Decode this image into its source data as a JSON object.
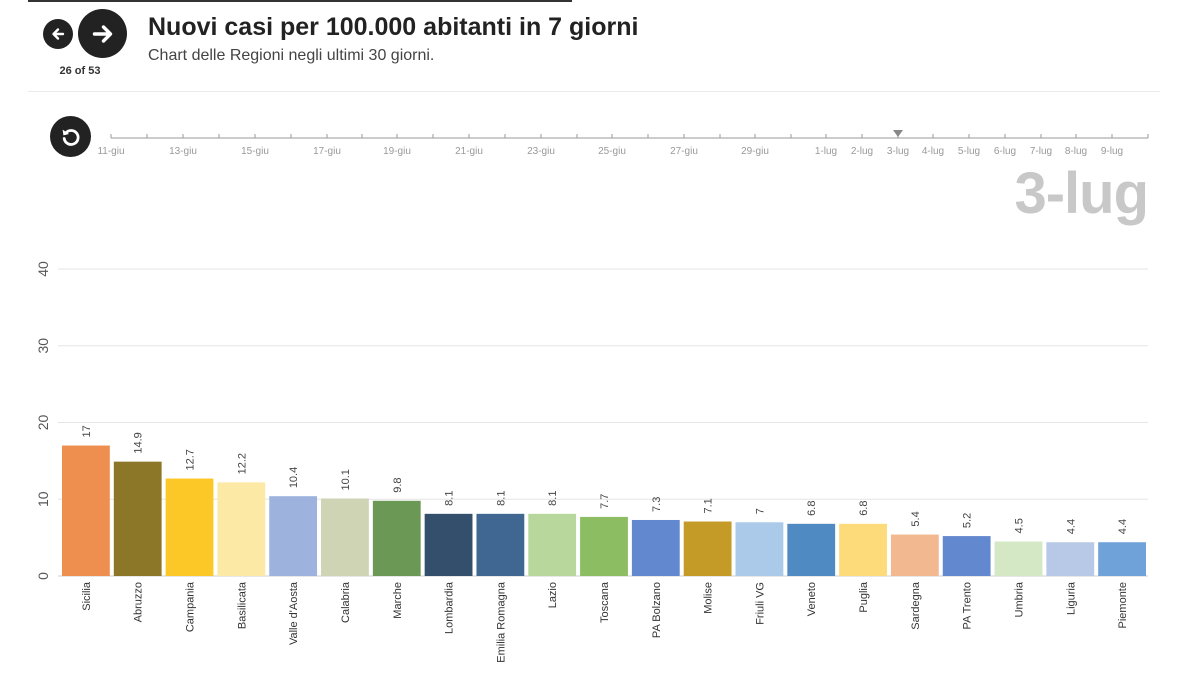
{
  "header": {
    "title": "Nuovi casi per 100.000 abitanti in 7 giorni",
    "subtitle": "Chart delle Regioni negli ultimi 30 giorni.",
    "counter": "26 of 53"
  },
  "timeline": {
    "current": "3-lug",
    "current_index": 22,
    "labels": [
      "11-giu",
      "",
      "13-giu",
      "",
      "15-giu",
      "",
      "17-giu",
      "",
      "19-giu",
      "",
      "21-giu",
      "",
      "23-giu",
      "",
      "25-giu",
      "",
      "27-giu",
      "",
      "29-giu",
      "",
      "1-lug",
      "2-lug",
      "3-lug",
      "4-lug",
      "5-lug",
      "6-lug",
      "7-lug",
      "8-lug",
      "9-lug"
    ]
  },
  "colors": {
    "text": "#222222",
    "grid": "#e6e6e6",
    "big_date": "#c8c8c8"
  },
  "chart_data": {
    "type": "bar",
    "title": "Nuovi casi per 100.000 abitanti in 7 giorni",
    "xlabel": "",
    "ylabel": "",
    "ylim": [
      0,
      40
    ],
    "yticks": [
      0,
      10,
      20,
      30,
      40
    ],
    "grid": true,
    "categories": [
      "Sicilia",
      "Abruzzo",
      "Campania",
      "Basilicata",
      "Valle d'Aosta",
      "Calabria",
      "Marche",
      "Lombardia",
      "Emilia Romagna",
      "Lazio",
      "Toscana",
      "PA Bolzano",
      "Molise",
      "Friuli VG",
      "Veneto",
      "Puglia",
      "Sardegna",
      "PA Trento",
      "Umbria",
      "Liguria",
      "Piemonte"
    ],
    "values": [
      17,
      14.9,
      12.7,
      12.2,
      10.4,
      10.1,
      9.8,
      8.1,
      8.1,
      8.1,
      7.7,
      7.3,
      7.1,
      7,
      6.8,
      6.8,
      5.4,
      5.2,
      4.5,
      4.4,
      4.4
    ],
    "value_labels": [
      "17",
      "14.9",
      "12.7",
      "12.2",
      "10.4",
      "10.1",
      "9.8",
      "8.1",
      "8.1",
      "8.1",
      "7.7",
      "7.3",
      "7.1",
      "7",
      "6.8",
      "6.8",
      "5.4",
      "5.2",
      "4.5",
      "4.4",
      "4.4"
    ],
    "bar_colors": [
      "#ef8f4f",
      "#8c7627",
      "#fcc827",
      "#fde9a6",
      "#9db3de",
      "#cfd4b5",
      "#6b9855",
      "#344f6b",
      "#3f6791",
      "#b7d79c",
      "#8cbd62",
      "#6288cf",
      "#c59b28",
      "#abc9e8",
      "#4f8bc2",
      "#fddb7a",
      "#f2b88f",
      "#6288cf",
      "#d5e8c6",
      "#b8c9e8",
      "#6fa2d9"
    ]
  }
}
